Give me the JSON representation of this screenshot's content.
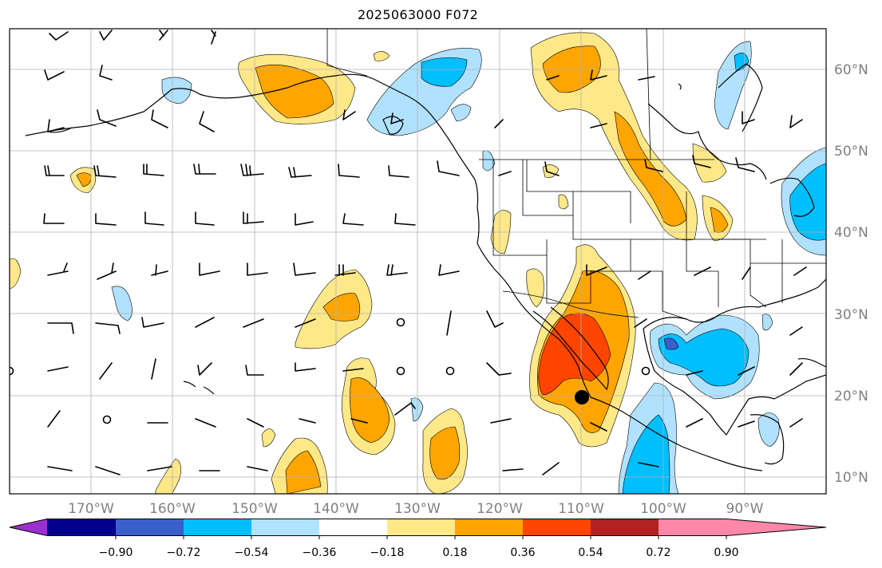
{
  "title": "2025063000 F072",
  "map": {
    "lat_labels": [
      "10°N",
      "20°N",
      "30°N",
      "40°N",
      "50°N",
      "60°N"
    ],
    "lon_labels": [
      "170°W",
      "160°W",
      "150°W",
      "140°W",
      "130°W",
      "120°W",
      "110°W",
      "100°W",
      "90°W"
    ]
  },
  "colorbar": {
    "colors": [
      "#9b30d0",
      "#00008b",
      "#3a5fcd",
      "#00bfff",
      "#b0e2ff",
      "#ffffff",
      "#ffe888",
      "#ffa500",
      "#ff4500",
      "#b22222",
      "#ff88aa"
    ],
    "tick_labels": [
      "−0.90",
      "−0.72",
      "−0.54",
      "−0.36",
      "−0.18",
      "0.18",
      "0.36",
      "0.54",
      "0.72",
      "0.90"
    ]
  },
  "field_colors": {
    "pos_light": "#ffe888",
    "pos_mid": "#ffa500",
    "pos_high": "#ff4500",
    "neg_light": "#b0e2ff",
    "neg_mid": "#00bfff",
    "neg_high": "#3a5fcd"
  }
}
